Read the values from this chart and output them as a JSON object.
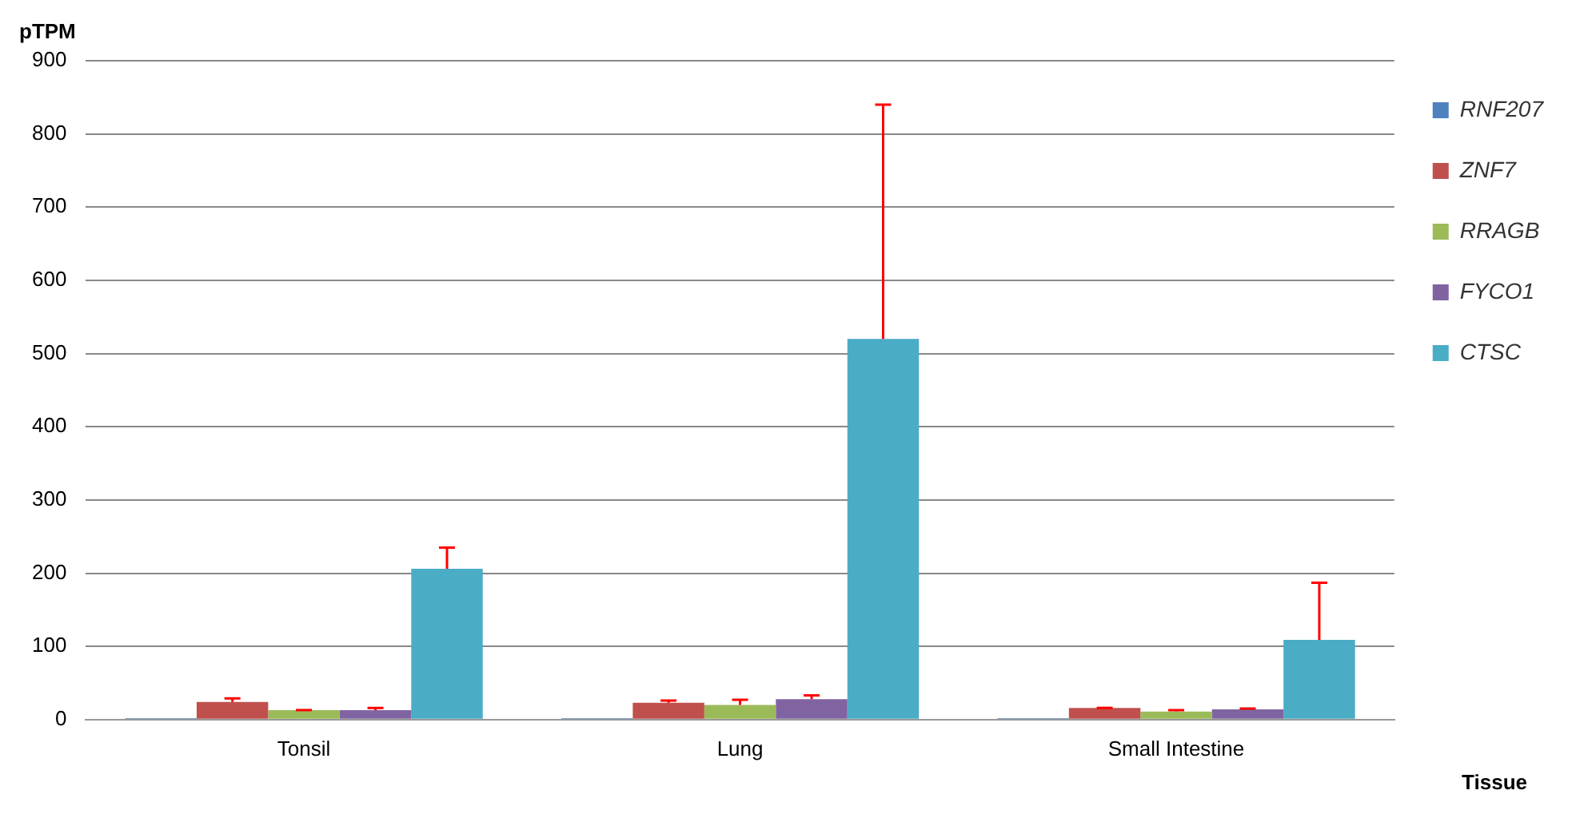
{
  "chart_data": {
    "type": "bar",
    "xlabel": "Tissue",
    "ylabel": "pTPM",
    "categories": [
      "Tonsil",
      "Lung",
      "Small Intestine"
    ],
    "series": [
      {
        "name": "RNF207",
        "color": "#4f81bd",
        "values": [
          2,
          2,
          2
        ],
        "errors": [
          null,
          null,
          null
        ]
      },
      {
        "name": "ZNF7",
        "color": "#c0504d",
        "values": [
          24,
          23,
          16
        ],
        "errors": [
          [
            24,
            29
          ],
          [
            23,
            26
          ],
          [
            16,
            16
          ]
        ]
      },
      {
        "name": "RRAGB",
        "color": "#9bbb59",
        "values": [
          13,
          20,
          11
        ],
        "errors": [
          [
            13,
            13
          ],
          [
            20,
            27
          ],
          [
            11,
            13
          ]
        ]
      },
      {
        "name": "FYCO1",
        "color": "#8064a2",
        "values": [
          13,
          28,
          14
        ],
        "errors": [
          [
            13,
            16
          ],
          [
            28,
            33
          ],
          [
            14,
            15
          ]
        ]
      },
      {
        "name": "CTSC",
        "color": "#4bacc6",
        "values": [
          206,
          520,
          109
        ],
        "errors": [
          [
            206,
            235
          ],
          [
            520,
            840
          ],
          [
            109,
            187
          ]
        ]
      }
    ],
    "ylim": [
      0,
      900
    ],
    "yticks": [
      0,
      100,
      200,
      300,
      400,
      500,
      600,
      700,
      800,
      900
    ],
    "grid": "y",
    "legend": "right"
  }
}
